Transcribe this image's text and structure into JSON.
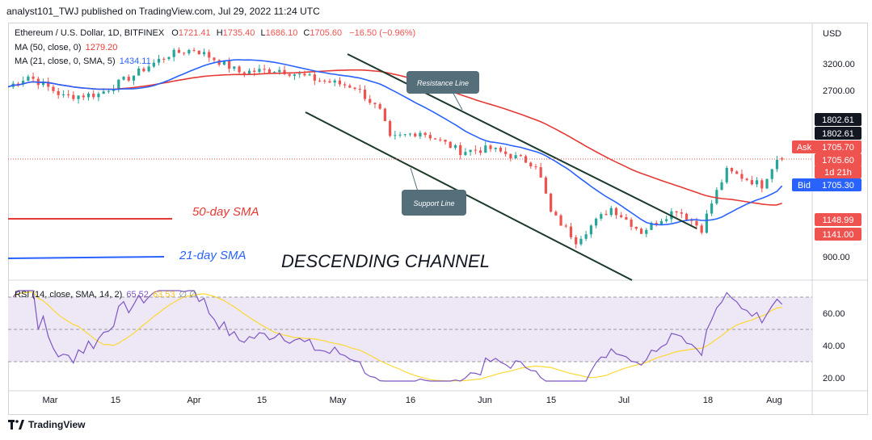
{
  "header": {
    "publisher_line": "analyst101_TWJ published on TradingView.com, Jul 29, 2022 11:24 UTC"
  },
  "legend": {
    "symbol": "Ethereum / U.S. Dollar, 1D, BITFINEX",
    "o_label": "O",
    "o": "1721.41",
    "h_label": "H",
    "h": "1735.40",
    "l_label": "L",
    "l": "1686.10",
    "c_label": "C",
    "c": "1705.60",
    "change": "−16.50 (−0.96%)",
    "ma50_label": "MA (50, close, 0)",
    "ma50_value": "1279.20",
    "ma21_label": "MA (21, close, 0, SMA, 5)",
    "ma21_value": "1434.11",
    "rsi_label": "RSI (14, close, SMA, 14, 2)",
    "rsi_value": "65.52",
    "rsi_sma_value": "63.53",
    "rsi_extra": "∅ ∅"
  },
  "annotations": {
    "resistance": "Resistance Line",
    "support": "Support Line",
    "sma50": "50-day SMA",
    "sma21": "21-day SMA",
    "channel": "DESCENDING CHANNEL"
  },
  "price_axis": {
    "currency": "USD",
    "ticks": [
      "3200.00",
      "2700.00",
      "900.00"
    ],
    "badges": [
      {
        "text": "1802.61",
        "color": "#131722"
      },
      {
        "text": "1802.61",
        "color": "#131722"
      },
      {
        "text": "Ask",
        "color": "#ef5350"
      },
      {
        "text": "1705.70",
        "color": "#ef5350"
      },
      {
        "text": "1705.60",
        "color": "#ef5350"
      },
      {
        "text": "1d 21h",
        "color": "#ef5350"
      },
      {
        "text": "Bid",
        "color": "#2962ff"
      },
      {
        "text": "1705.30",
        "color": "#2962ff"
      },
      {
        "text": "1148.99",
        "color": "#ef5350"
      },
      {
        "text": "1141.00",
        "color": "#ef5350"
      }
    ]
  },
  "rsi_axis": {
    "ticks": [
      "60.00",
      "40.00",
      "20.00"
    ]
  },
  "time_axis": {
    "labels": [
      "Mar",
      "15",
      "Apr",
      "15",
      "May",
      "16",
      "Jun",
      "15",
      "Jul",
      "18",
      "Aug"
    ]
  },
  "colors": {
    "up": "#26a69a",
    "down": "#ef5350",
    "ma50": "#e53935",
    "ma21": "#2962ff",
    "rsi": "#7e57c2",
    "rsi_ma": "#fdd835",
    "channel": "#1b3a2a",
    "rsi_band": "#ede7f6"
  },
  "footer": {
    "brand": "TradingView"
  },
  "chart_data": {
    "type": "candlestick",
    "symbol": "Ethereum / U.S. Dollar",
    "timeframe": "1D",
    "exchange": "BITFINEX",
    "last_ohlc": {
      "open": 1721.41,
      "high": 1735.4,
      "low": 1686.1,
      "close": 1705.6
    },
    "change": -16.5,
    "change_pct": -0.96,
    "x_axis_labels": [
      "Mar",
      "15",
      "Apr",
      "15",
      "May",
      "16",
      "Jun",
      "15",
      "Jul",
      "18",
      "Aug"
    ],
    "y_axis_ticks": [
      3200,
      2700,
      900
    ],
    "approx_close_series": [
      {
        "date": "2022-02-25",
        "close": 2750
      },
      {
        "date": "2022-03-01",
        "close": 2950
      },
      {
        "date": "2022-03-08",
        "close": 2580
      },
      {
        "date": "2022-03-15",
        "close": 2620
      },
      {
        "date": "2022-03-22",
        "close": 2970
      },
      {
        "date": "2022-03-29",
        "close": 3400
      },
      {
        "date": "2022-04-03",
        "close": 3520
      },
      {
        "date": "2022-04-12",
        "close": 3030
      },
      {
        "date": "2022-04-20",
        "close": 3080
      },
      {
        "date": "2022-04-27",
        "close": 2890
      },
      {
        "date": "2022-05-05",
        "close": 2750
      },
      {
        "date": "2022-05-10",
        "close": 2340
      },
      {
        "date": "2022-05-12",
        "close": 1950
      },
      {
        "date": "2022-05-18",
        "close": 2050
      },
      {
        "date": "2022-05-26",
        "close": 1800
      },
      {
        "date": "2022-06-01",
        "close": 1830
      },
      {
        "date": "2022-06-10",
        "close": 1650
      },
      {
        "date": "2022-06-13",
        "close": 1200
      },
      {
        "date": "2022-06-18",
        "close": 1000
      },
      {
        "date": "2022-06-25",
        "close": 1240
      },
      {
        "date": "2022-07-01",
        "close": 1060
      },
      {
        "date": "2022-07-08",
        "close": 1230
      },
      {
        "date": "2022-07-13",
        "close": 1080
      },
      {
        "date": "2022-07-18",
        "close": 1580
      },
      {
        "date": "2022-07-25",
        "close": 1440
      },
      {
        "date": "2022-07-28",
        "close": 1720
      },
      {
        "date": "2022-07-29",
        "close": 1705.6
      }
    ],
    "series": [
      {
        "name": "MA (50, close, 0)",
        "last": 1279.2
      },
      {
        "name": "MA (21, close, 0, SMA, 5)",
        "last": 1434.11
      }
    ],
    "indicator": {
      "name": "RSI (14, close, SMA, 14, 2)",
      "rsi": 65.52,
      "rsi_sma": 63.53,
      "yticks": [
        60,
        40,
        20
      ],
      "band": [
        30,
        70
      ]
    },
    "markers": {
      "ask": 1705.7,
      "bid": 1705.3,
      "last": 1705.6,
      "levels": [
        1802.61,
        1148.99,
        1141.0
      ]
    }
  }
}
